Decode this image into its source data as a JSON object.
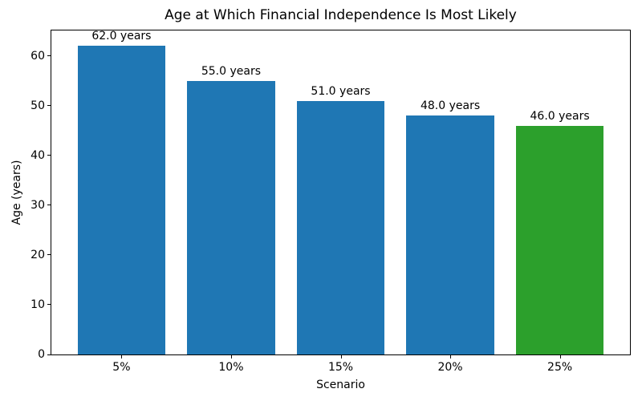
{
  "chart_data": {
    "type": "bar",
    "title": "Age at Which Financial Independence Is Most Likely",
    "xlabel": "Scenario",
    "ylabel": "Age (years)",
    "categories": [
      "5%",
      "10%",
      "15%",
      "20%",
      "25%"
    ],
    "values": [
      62.0,
      55.0,
      51.0,
      48.0,
      46.0
    ],
    "bar_labels": [
      "62.0 years",
      "55.0 years",
      "51.0 years",
      "48.0 years",
      "46.0 years"
    ],
    "bar_colors": [
      "#1f77b4",
      "#1f77b4",
      "#1f77b4",
      "#1f77b4",
      "#2ca02c"
    ],
    "ylim": [
      0,
      65.1
    ],
    "yticks": [
      0,
      10,
      20,
      30,
      40,
      50,
      60
    ],
    "grid": false,
    "legend_position": "none",
    "colors": {
      "default_bar": "#1f77b4",
      "highlight_bar": "#2ca02c",
      "text": "#000000",
      "background": "#ffffff"
    }
  }
}
